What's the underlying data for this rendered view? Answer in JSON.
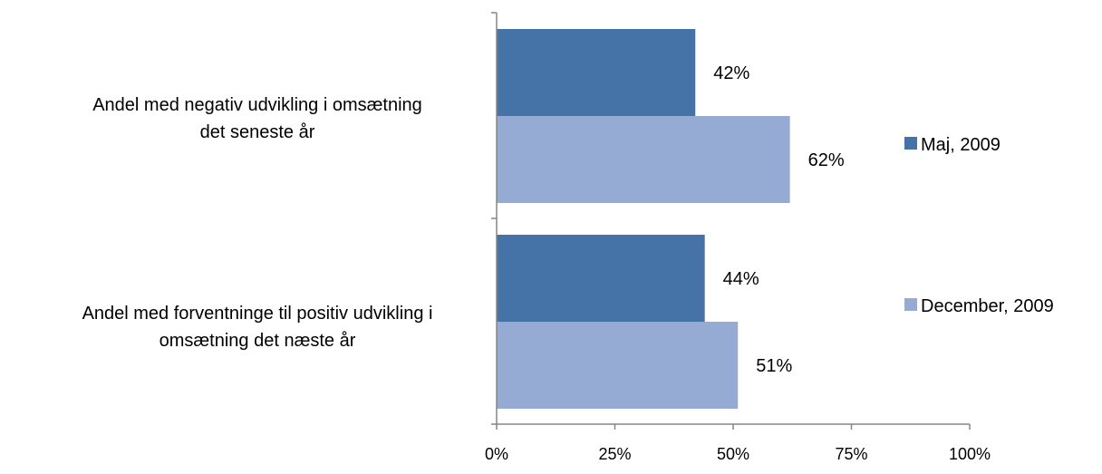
{
  "chart_data": {
    "type": "bar",
    "orientation": "horizontal",
    "categories": [
      [
        "Andel med negativ udvikling i omsætning",
        "det seneste år"
      ],
      [
        "Andel med forventninge til positiv udvikling i",
        "omsætning det næste år"
      ]
    ],
    "series": [
      {
        "name": "Maj, 2009",
        "color": "#4573A7",
        "values": [
          42,
          44
        ]
      },
      {
        "name": "December, 2009",
        "color": "#95ABD3",
        "values": [
          62,
          51
        ]
      }
    ],
    "data_labels": [
      [
        "42%",
        "44%"
      ],
      [
        "62%",
        "51%"
      ]
    ],
    "xlim": [
      0,
      100
    ],
    "xticks": [
      0,
      25,
      50,
      75,
      100
    ],
    "xtick_labels": [
      "0%",
      "25%",
      "50%",
      "75%",
      "100%"
    ],
    "title": "",
    "xlabel": "",
    "ylabel": "",
    "grid": false,
    "legend_position": "right"
  }
}
